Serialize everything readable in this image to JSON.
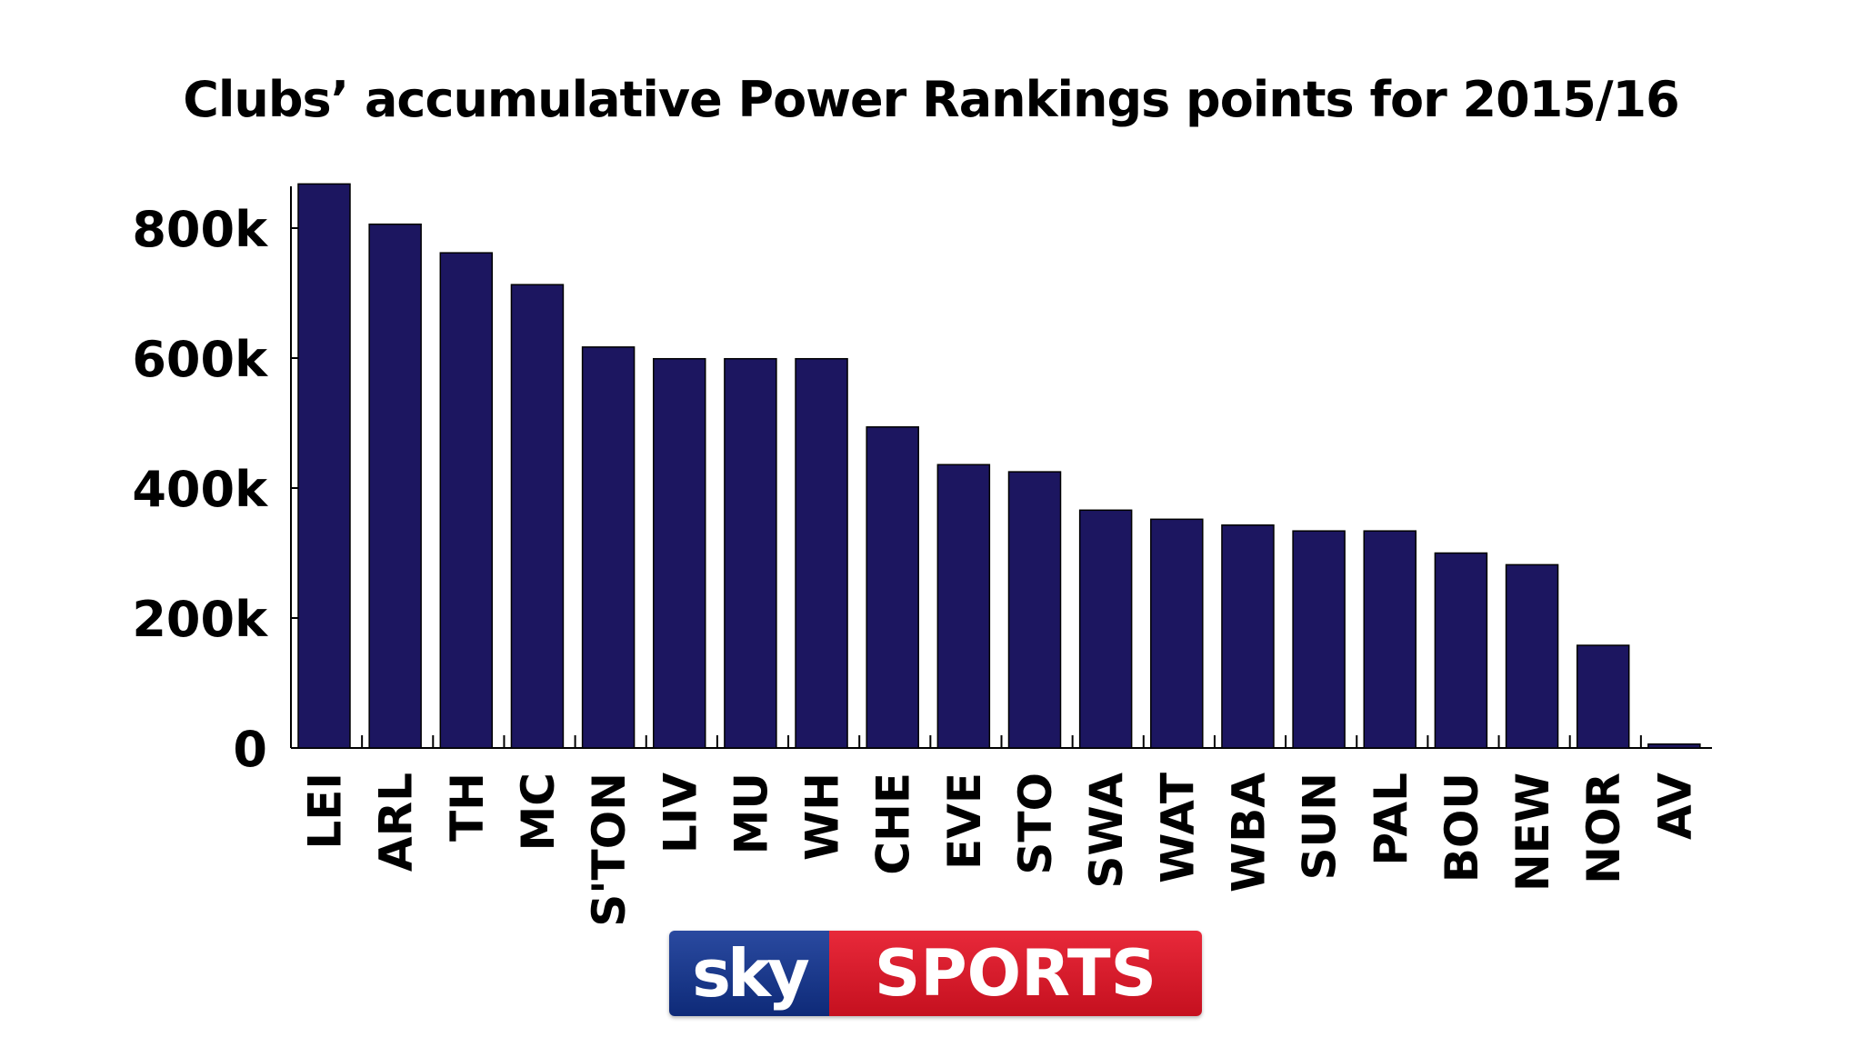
{
  "chart_data": {
    "type": "bar",
    "title": "Clubs’ accumulative Power Rankings points for 2015/16",
    "xlabel": "",
    "ylabel": "",
    "ylim": [
      0,
      880000
    ],
    "yticks": [
      0,
      200000,
      400000,
      600000,
      800000
    ],
    "ytick_labels": [
      "0",
      "200k",
      "400k",
      "600k",
      "800k"
    ],
    "categories": [
      "LEI",
      "ARL",
      "TH",
      "MC",
      "S'TON",
      "LIV",
      "MU",
      "WH",
      "CHE",
      "EVE",
      "STO",
      "SWA",
      "WAT",
      "WBA",
      "SUN",
      "PAL",
      "BOU",
      "NEW",
      "NOR",
      "AV"
    ],
    "values": [
      868000,
      806000,
      762000,
      713000,
      617000,
      599000,
      599000,
      599000,
      494000,
      436000,
      425000,
      366000,
      352000,
      343000,
      334000,
      334000,
      300000,
      282000,
      158000,
      6000
    ],
    "bar_color": "#1c1660",
    "grid": false
  },
  "logo": {
    "sky": "sky",
    "sports": "SPORTS"
  }
}
